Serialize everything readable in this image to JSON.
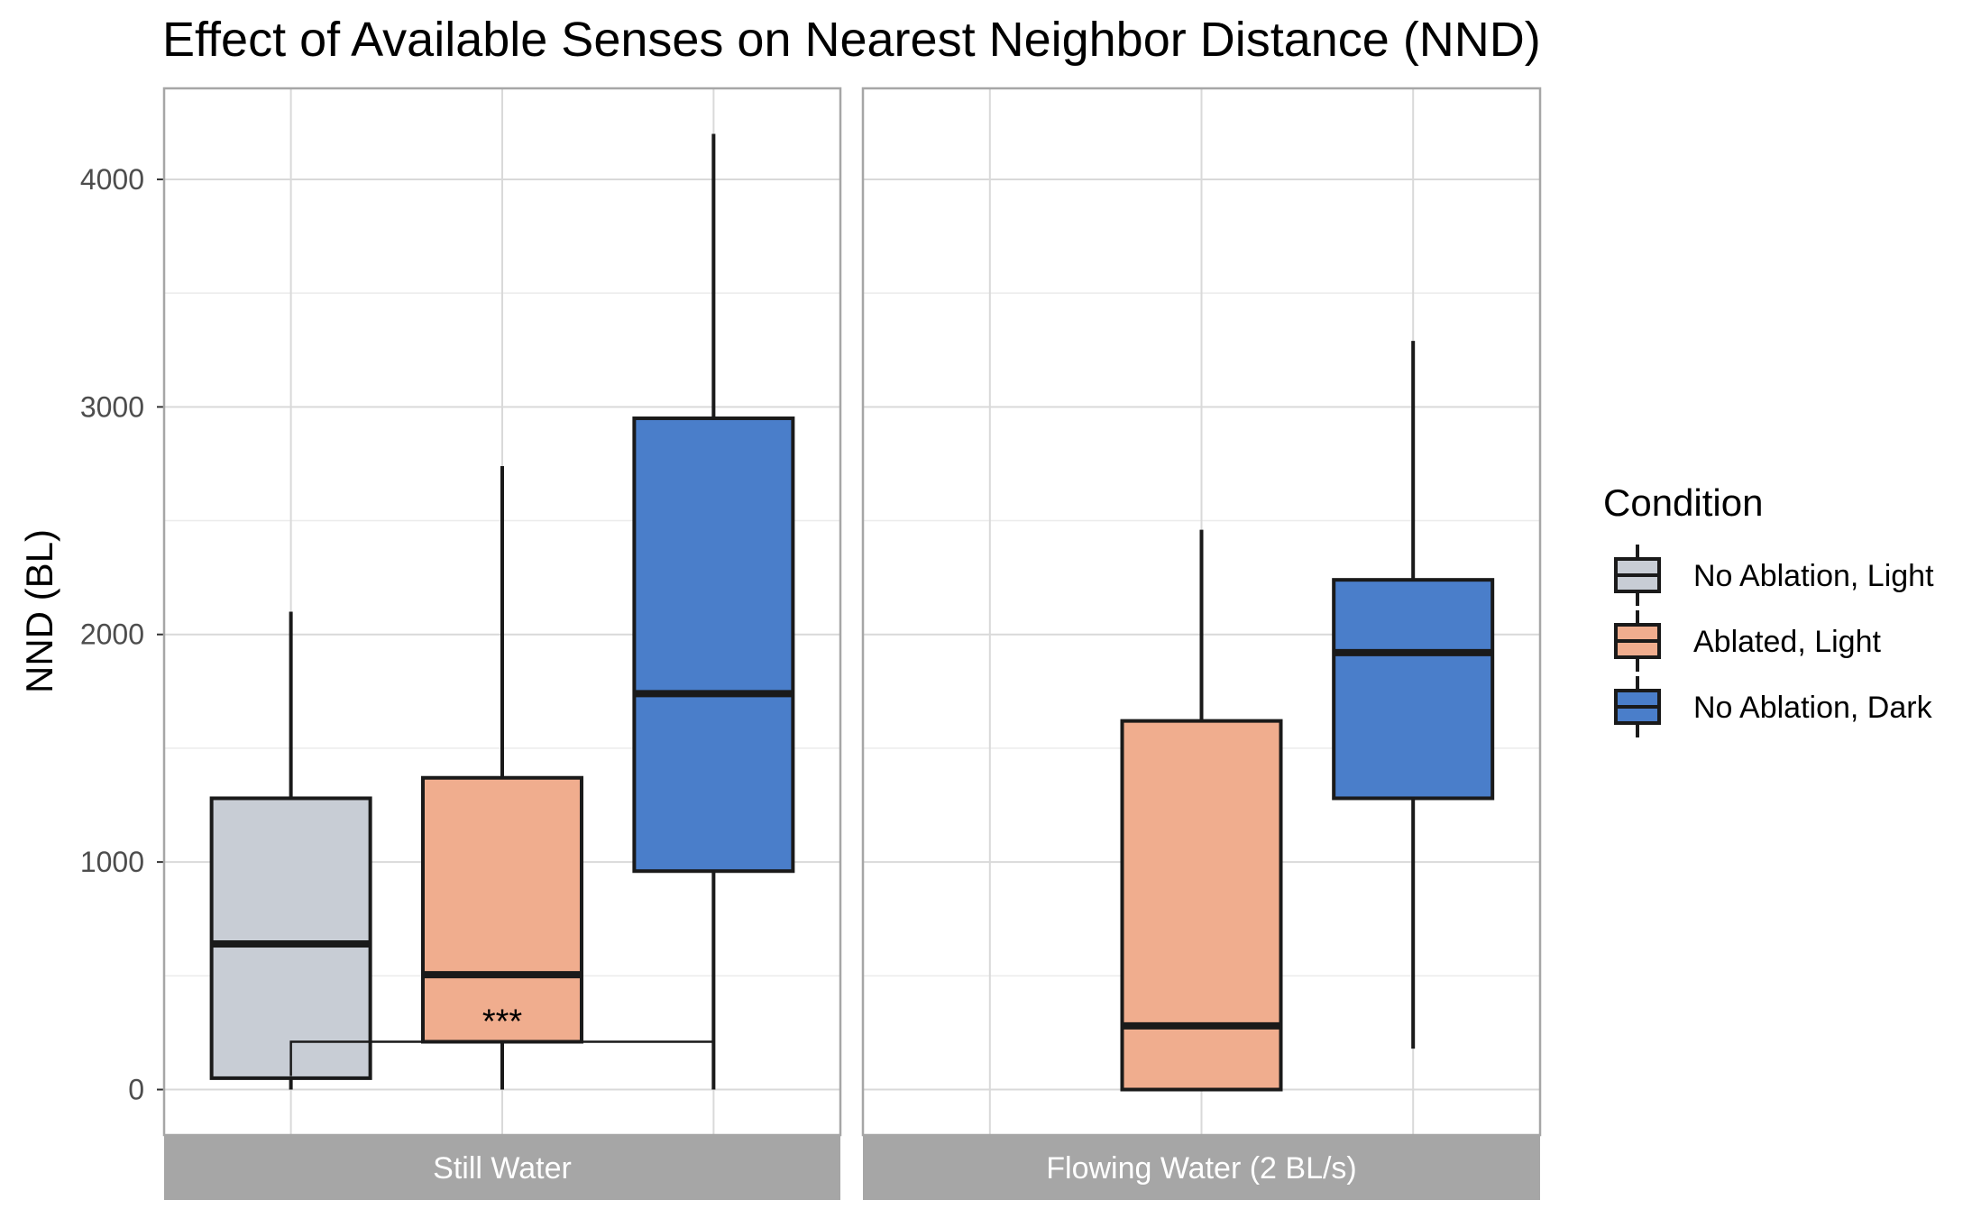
{
  "chart_data": {
    "type": "boxplot",
    "title": "Effect of Available Senses on Nearest Neighbor Distance (NND)",
    "ylabel": "NND (BL)",
    "xlabel": "",
    "ylim": [
      -200,
      4400
    ],
    "yticks": [
      0,
      1000,
      2000,
      3000,
      4000
    ],
    "grid": true,
    "legend": {
      "title": "Condition",
      "position": "right",
      "entries": [
        {
          "label": "No Ablation, Light",
          "color": "#C8CDD5"
        },
        {
          "label": "Ablated, Light",
          "color": "#F0AD8E"
        },
        {
          "label": "No Ablation, Dark",
          "color": "#4A7ECA"
        }
      ]
    },
    "panels": [
      {
        "name": "Still Water",
        "boxes": [
          {
            "condition": "No Ablation, Light",
            "min": 0,
            "q1": 50,
            "median": 640,
            "q3": 1280,
            "max": 2100
          },
          {
            "condition": "Ablated, Light",
            "min": 0,
            "q1": 210,
            "median": 505,
            "q3": 1370,
            "max": 2740
          },
          {
            "condition": "No Ablation, Dark",
            "min": 0,
            "q1": 960,
            "median": 1740,
            "q3": 2950,
            "max": 4200
          }
        ],
        "significance": {
          "from": "No Ablation, Light",
          "to": "No Ablation, Dark",
          "y": 210,
          "label": "***"
        }
      },
      {
        "name": "Flowing Water (2 BL/s)",
        "boxes": [
          {
            "condition": "Ablated, Light",
            "min": 0,
            "q1": 0,
            "median": 280,
            "q3": 1620,
            "max": 2460
          },
          {
            "condition": "No Ablation, Dark",
            "min": 180,
            "q1": 1280,
            "median": 1920,
            "q3": 2240,
            "max": 3290
          }
        ]
      }
    ]
  }
}
